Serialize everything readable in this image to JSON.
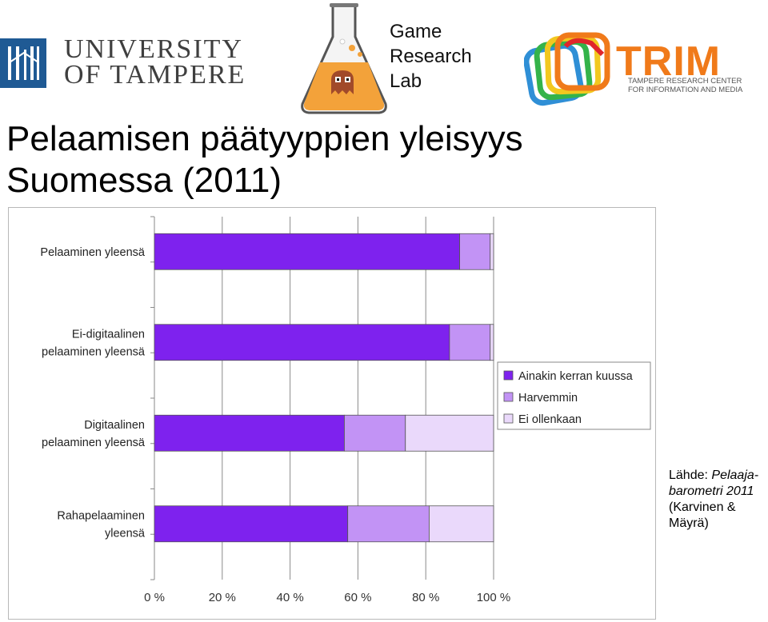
{
  "header": {
    "university_logo": [
      "UNIVERSITY",
      "OF TAMPERE"
    ],
    "lab_name": [
      "Game",
      "Research",
      "Lab"
    ],
    "trim_logo": {
      "word": "TRIM",
      "subtitle": [
        "TAMPERE RESEARCH CENTER",
        "FOR INFORMATION AND MEDIA"
      ]
    }
  },
  "title": [
    "Pelaamisen päätyyppien yleisyys",
    "Suomessa (2011)"
  ],
  "source": {
    "prefix": "Lähde: ",
    "italic": [
      "Pelaaja-",
      "barometri 2011"
    ],
    "rest": [
      "(Karvinen &",
      "Mäyrä)"
    ]
  },
  "colors": {
    "series1": "#7e22ee",
    "series2": "#c293f5",
    "series3": "#ead9fb",
    "uni_blue": "#1f5a94",
    "trim_orange": "#f07a1a"
  },
  "chart_data": {
    "type": "bar",
    "orientation": "horizontal",
    "stacked": true,
    "categories": [
      [
        "Pelaaminen yleensä"
      ],
      [
        "Ei-digitaalinen",
        "pelaaminen yleensä"
      ],
      [
        "Digitaalinen",
        "pelaaminen yleensä"
      ],
      [
        "Rahapelaaminen",
        "yleensä"
      ]
    ],
    "series": [
      {
        "name": "Ainakin kerran kuussa",
        "values": [
          90,
          87,
          56,
          57
        ]
      },
      {
        "name": "Harvemmin",
        "values": [
          9,
          12,
          18,
          24
        ]
      },
      {
        "name": "Ei ollenkaan",
        "values": [
          1,
          1,
          26,
          19
        ]
      }
    ],
    "xlim": [
      0,
      100
    ],
    "xticks": [
      "0 %",
      "20 %",
      "40 %",
      "60 %",
      "80 %",
      "100 %"
    ],
    "grid": true,
    "legend_position": "right"
  }
}
